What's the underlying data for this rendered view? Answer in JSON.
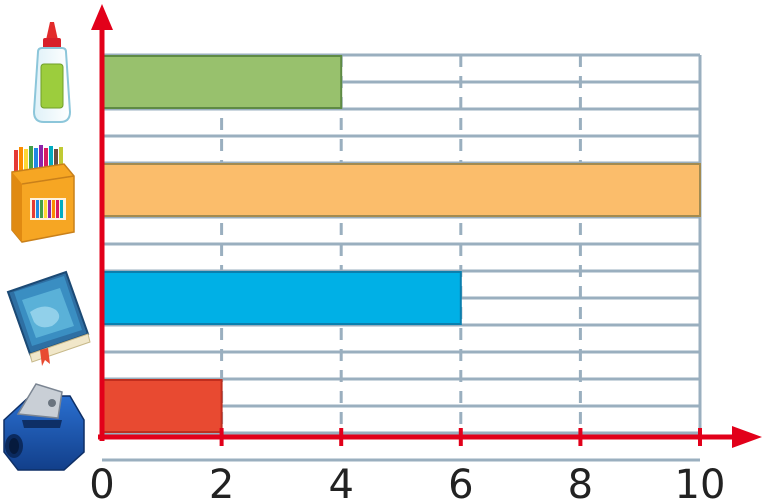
{
  "chart_data": {
    "type": "bar",
    "orientation": "horizontal",
    "categories": [
      "glue",
      "colored-pencils",
      "book",
      "pencil-sharpener"
    ],
    "category_icons": [
      "glue-bottle-icon",
      "colored-pencils-box-icon",
      "book-icon",
      "pencil-sharpener-icon"
    ],
    "values": [
      4,
      10,
      6,
      2
    ],
    "bar_colors": [
      "#98c16d",
      "#fbbd6b",
      "#00b0e6",
      "#e84a31"
    ],
    "bar_borders": [
      "#5e8a44",
      "#a38b50",
      "#0a7fae",
      "#c02e1e"
    ],
    "xlim": [
      0,
      10
    ],
    "xticks": [
      0,
      2,
      4,
      6,
      8,
      10
    ],
    "xtick_labels": [
      "0",
      "2",
      "4",
      "6",
      "8",
      "10"
    ],
    "grid": true,
    "axis_color": "#e2001a",
    "grid_color": "#9aafbf",
    "legend": "none"
  }
}
